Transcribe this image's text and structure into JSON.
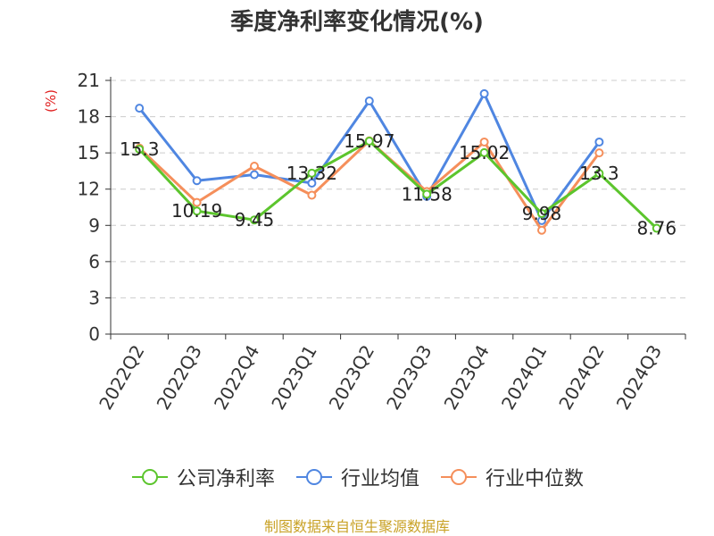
{
  "title": "季度净利率变化情况(%)",
  "source": "制图数据来自恒生聚源数据库",
  "colors": {
    "company": "#5cc52d",
    "industry_avg": "#4f86e1",
    "industry_median": "#f58f5b",
    "source_text": "#c9a227",
    "unit_text": "#e02020"
  },
  "chart_data": {
    "type": "line",
    "title": "季度净利率变化情况(%)",
    "ylabel": "(%)",
    "xlabel": "",
    "ylim": [
      0,
      21
    ],
    "yticks": [
      0,
      3,
      6,
      9,
      12,
      15,
      18,
      21
    ],
    "grid": true,
    "legend_position": "bottom",
    "categories": [
      "2022Q2",
      "2022Q3",
      "2022Q4",
      "2023Q1",
      "2023Q2",
      "2023Q3",
      "2023Q4",
      "2024Q1",
      "2024Q2",
      "2024Q3"
    ],
    "series": [
      {
        "name": "公司净利率",
        "values": [
          15.3,
          10.19,
          9.45,
          13.32,
          15.97,
          11.58,
          15.02,
          9.98,
          13.3,
          8.76
        ],
        "labels": [
          "15.3",
          "10.19",
          "9.45",
          "13.32",
          "15.97",
          "11.58",
          "15.02",
          "9.98",
          "13.3",
          "8.76"
        ]
      },
      {
        "name": "行业均值",
        "values": [
          18.7,
          12.7,
          13.2,
          12.5,
          19.3,
          11.4,
          19.9,
          9.4,
          15.9,
          null
        ]
      },
      {
        "name": "行业中位数",
        "values": [
          15.4,
          10.9,
          13.9,
          11.5,
          16.0,
          11.8,
          15.9,
          8.6,
          15.0,
          null
        ]
      }
    ]
  }
}
